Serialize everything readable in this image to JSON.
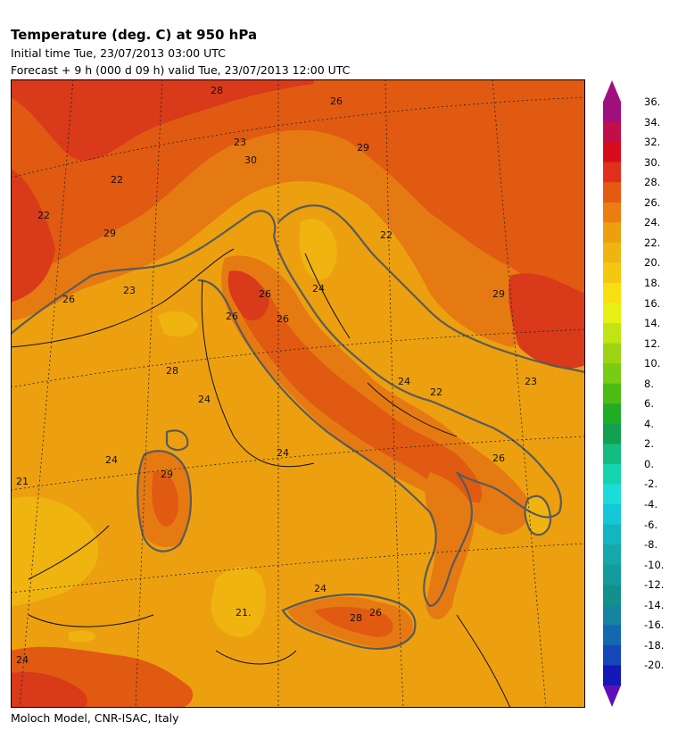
{
  "header": {
    "title": "Temperature (deg. C) at 950 hPa",
    "initial_time": "Initial time  Tue, 23/07/2013  03:00 UTC",
    "forecast": "Forecast  +   9 h  (000 d 09 h)  valid Tue, 23/07/2013 12:00 UTC"
  },
  "footer": {
    "credit": "Moloch Model, CNR-ISAC, Italy"
  },
  "map": {
    "contour_labels": [
      "28",
      "26",
      "23",
      "30",
      "29",
      "22",
      "22",
      "29",
      "22",
      "23",
      "26",
      "26",
      "26",
      "26",
      "28",
      "24",
      "24",
      "24",
      "22",
      "23",
      "26",
      "29",
      "29",
      "24",
      "21.",
      "24",
      "26",
      "28",
      "24",
      "21",
      "24"
    ]
  },
  "colorbar": {
    "labels": [
      "36.",
      "34.",
      "32.",
      "30.",
      "28.",
      "26.",
      "24.",
      "22.",
      "20.",
      "18.",
      "16.",
      "14.",
      "12.",
      "10.",
      "8.",
      "6.",
      "4.",
      "2.",
      "0.",
      "-2.",
      "-4.",
      "-6.",
      "-8.",
      "-10.",
      "-12.",
      "-14.",
      "-16.",
      "-18.",
      "-20."
    ],
    "colors": [
      "#a0107c",
      "#c0104c",
      "#d80c1c",
      "#e0301c",
      "#e45a10",
      "#ea7e10",
      "#eca010",
      "#f0b410",
      "#f4c810",
      "#f8e010",
      "#e8f014",
      "#c0e414",
      "#9cd414",
      "#78cc14",
      "#4cbc14",
      "#20ac24",
      "#10a050",
      "#14bc80",
      "#14d4b0",
      "#1cdcd8",
      "#14c8d8",
      "#14b4c0",
      "#14a8a8",
      "#149c9c",
      "#14908c",
      "#1484a0",
      "#1468b0",
      "#1448b8",
      "#1418b8"
    ],
    "arrow_top": "#a0107c",
    "arrow_bottom": "#6010b8"
  },
  "palette": {
    "band_22": "#f0b410",
    "band_24": "#eca010",
    "band_26": "#e67a12",
    "band_28": "#e05a12",
    "band_30": "#d83a1a"
  }
}
